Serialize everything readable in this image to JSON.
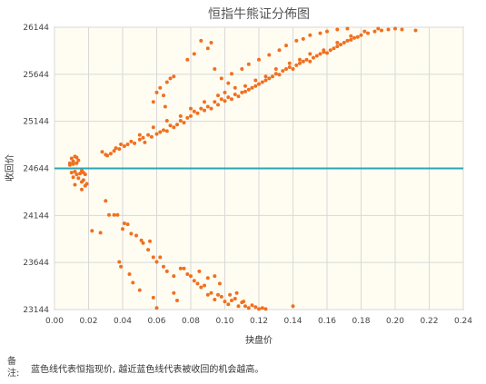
{
  "chart_data": {
    "type": "scatter",
    "title": "恒指牛熊证分佈图",
    "xlabel": "抉盘价",
    "ylabel": "收回价",
    "xlim": [
      0,
      0.24
    ],
    "ylim": [
      23144,
      26144
    ],
    "xticks": [
      "0.00",
      "0.02",
      "0.04",
      "0.06",
      "0.08",
      "0.10",
      "0.12",
      "0.14",
      "0.16",
      "0.18",
      "0.20",
      "0.22",
      "0.24"
    ],
    "yticks": [
      "23144",
      "23644",
      "24144",
      "24644",
      "25144",
      "25644",
      "26144"
    ],
    "reference_line": {
      "y": 24644,
      "color": "#2aa5b4"
    },
    "grid": true,
    "point_color": "#f07020",
    "background": "#fffdf2",
    "points": [
      [
        0.009,
        24700
      ],
      [
        0.01,
        24750
      ],
      [
        0.011,
        24720
      ],
      [
        0.012,
        24770
      ],
      [
        0.013,
        24760
      ],
      [
        0.009,
        24680
      ],
      [
        0.011,
        24690
      ],
      [
        0.013,
        24700
      ],
      [
        0.014,
        24730
      ],
      [
        0.01,
        24600
      ],
      [
        0.012,
        24610
      ],
      [
        0.013,
        24580
      ],
      [
        0.015,
        24590
      ],
      [
        0.016,
        24620
      ],
      [
        0.017,
        24600
      ],
      [
        0.018,
        24580
      ],
      [
        0.011,
        24550
      ],
      [
        0.014,
        24540
      ],
      [
        0.016,
        24500
      ],
      [
        0.017,
        24520
      ],
      [
        0.018,
        24460
      ],
      [
        0.012,
        24470
      ],
      [
        0.016,
        24420
      ],
      [
        0.019,
        24480
      ],
      [
        0.022,
        23980
      ],
      [
        0.027,
        23960
      ],
      [
        0.03,
        24300
      ],
      [
        0.032,
        24150
      ],
      [
        0.035,
        24150
      ],
      [
        0.037,
        24150
      ],
      [
        0.04,
        24000
      ],
      [
        0.041,
        24060
      ],
      [
        0.043,
        24050
      ],
      [
        0.045,
        23950
      ],
      [
        0.048,
        23930
      ],
      [
        0.051,
        23880
      ],
      [
        0.055,
        23780
      ],
      [
        0.058,
        23700
      ],
      [
        0.06,
        23650
      ],
      [
        0.064,
        23600
      ],
      [
        0.07,
        23500
      ],
      [
        0.052,
        23850
      ],
      [
        0.056,
        23870
      ],
      [
        0.062,
        23700
      ],
      [
        0.066,
        23550
      ],
      [
        0.074,
        23580
      ],
      [
        0.078,
        23520
      ],
      [
        0.038,
        23650
      ],
      [
        0.039,
        23600
      ],
      [
        0.044,
        23520
      ],
      [
        0.046,
        23430
      ],
      [
        0.05,
        23350
      ],
      [
        0.058,
        23270
      ],
      [
        0.06,
        23160
      ],
      [
        0.07,
        23320
      ],
      [
        0.072,
        23240
      ],
      [
        0.076,
        23580
      ],
      [
        0.08,
        23500
      ],
      [
        0.082,
        23450
      ],
      [
        0.084,
        23420
      ],
      [
        0.086,
        23380
      ],
      [
        0.088,
        23400
      ],
      [
        0.09,
        23300
      ],
      [
        0.092,
        23320
      ],
      [
        0.094,
        23250
      ],
      [
        0.096,
        23300
      ],
      [
        0.098,
        23280
      ],
      [
        0.1,
        23230
      ],
      [
        0.102,
        23200
      ],
      [
        0.104,
        23240
      ],
      [
        0.106,
        23260
      ],
      [
        0.108,
        23180
      ],
      [
        0.11,
        23220
      ],
      [
        0.112,
        23180
      ],
      [
        0.114,
        23160
      ],
      [
        0.116,
        23190
      ],
      [
        0.118,
        23170
      ],
      [
        0.12,
        23150
      ],
      [
        0.122,
        23160
      ],
      [
        0.124,
        23150
      ],
      [
        0.085,
        23550
      ],
      [
        0.09,
        23480
      ],
      [
        0.094,
        23500
      ],
      [
        0.097,
        23420
      ],
      [
        0.103,
        23300
      ],
      [
        0.107,
        23320
      ],
      [
        0.111,
        23230
      ],
      [
        0.14,
        23180
      ],
      [
        0.028,
        24820
      ],
      [
        0.03,
        24790
      ],
      [
        0.031,
        24780
      ],
      [
        0.033,
        24800
      ],
      [
        0.035,
        24830
      ],
      [
        0.036,
        24860
      ],
      [
        0.038,
        24850
      ],
      [
        0.039,
        24900
      ],
      [
        0.041,
        24880
      ],
      [
        0.043,
        24900
      ],
      [
        0.045,
        24930
      ],
      [
        0.047,
        24910
      ],
      [
        0.05,
        24950
      ],
      [
        0.052,
        24970
      ],
      [
        0.053,
        24920
      ],
      [
        0.055,
        25000
      ],
      [
        0.057,
        24980
      ],
      [
        0.06,
        25010
      ],
      [
        0.062,
        25030
      ],
      [
        0.064,
        25050
      ],
      [
        0.066,
        25040
      ],
      [
        0.068,
        25100
      ],
      [
        0.07,
        25080
      ],
      [
        0.072,
        25110
      ],
      [
        0.074,
        25150
      ],
      [
        0.076,
        25130
      ],
      [
        0.078,
        25180
      ],
      [
        0.08,
        25200
      ],
      [
        0.082,
        25250
      ],
      [
        0.084,
        25230
      ],
      [
        0.086,
        25280
      ],
      [
        0.088,
        25260
      ],
      [
        0.09,
        25300
      ],
      [
        0.092,
        25280
      ],
      [
        0.094,
        25350
      ],
      [
        0.096,
        25320
      ],
      [
        0.098,
        25380
      ],
      [
        0.1,
        25360
      ],
      [
        0.102,
        25400
      ],
      [
        0.104,
        25380
      ],
      [
        0.106,
        25430
      ],
      [
        0.108,
        25410
      ],
      [
        0.11,
        25450
      ],
      [
        0.112,
        25460
      ],
      [
        0.114,
        25480
      ],
      [
        0.116,
        25500
      ],
      [
        0.118,
        25520
      ],
      [
        0.12,
        25540
      ],
      [
        0.122,
        25560
      ],
      [
        0.124,
        25580
      ],
      [
        0.126,
        25600
      ],
      [
        0.128,
        25620
      ],
      [
        0.13,
        25650
      ],
      [
        0.132,
        25640
      ],
      [
        0.134,
        25680
      ],
      [
        0.136,
        25700
      ],
      [
        0.138,
        25720
      ],
      [
        0.14,
        25700
      ],
      [
        0.142,
        25740
      ],
      [
        0.144,
        25760
      ],
      [
        0.146,
        25780
      ],
      [
        0.148,
        25800
      ],
      [
        0.15,
        25780
      ],
      [
        0.152,
        25820
      ],
      [
        0.154,
        25840
      ],
      [
        0.156,
        25860
      ],
      [
        0.158,
        25880
      ],
      [
        0.16,
        25870
      ],
      [
        0.162,
        25900
      ],
      [
        0.164,
        25920
      ],
      [
        0.166,
        25940
      ],
      [
        0.168,
        25960
      ],
      [
        0.17,
        25980
      ],
      [
        0.172,
        26000
      ],
      [
        0.174,
        26010
      ],
      [
        0.176,
        26030
      ],
      [
        0.178,
        26040
      ],
      [
        0.18,
        26060
      ],
      [
        0.184,
        26080
      ],
      [
        0.188,
        26100
      ],
      [
        0.192,
        26110
      ],
      [
        0.196,
        26120
      ],
      [
        0.2,
        26130
      ],
      [
        0.204,
        26120
      ],
      [
        0.212,
        26110
      ],
      [
        0.05,
        25000
      ],
      [
        0.058,
        25080
      ],
      [
        0.066,
        25150
      ],
      [
        0.074,
        25200
      ],
      [
        0.08,
        25280
      ],
      [
        0.088,
        25350
      ],
      [
        0.096,
        25420
      ],
      [
        0.1,
        25450
      ],
      [
        0.106,
        25500
      ],
      [
        0.112,
        25520
      ],
      [
        0.118,
        25580
      ],
      [
        0.124,
        25620
      ],
      [
        0.13,
        25700
      ],
      [
        0.138,
        25760
      ],
      [
        0.144,
        25800
      ],
      [
        0.15,
        25860
      ],
      [
        0.158,
        25900
      ],
      [
        0.166,
        25980
      ],
      [
        0.174,
        26050
      ],
      [
        0.182,
        26100
      ],
      [
        0.19,
        26130
      ],
      [
        0.06,
        25450
      ],
      [
        0.062,
        25500
      ],
      [
        0.064,
        25420
      ],
      [
        0.066,
        25560
      ],
      [
        0.068,
        25600
      ],
      [
        0.07,
        25620
      ],
      [
        0.065,
        25300
      ],
      [
        0.058,
        25350
      ],
      [
        0.078,
        25800
      ],
      [
        0.082,
        25860
      ],
      [
        0.086,
        26000
      ],
      [
        0.09,
        25920
      ],
      [
        0.092,
        25980
      ],
      [
        0.094,
        25700
      ],
      [
        0.098,
        25600
      ],
      [
        0.102,
        25550
      ],
      [
        0.104,
        25650
      ],
      [
        0.11,
        25700
      ],
      [
        0.114,
        25750
      ],
      [
        0.12,
        25800
      ],
      [
        0.126,
        25850
      ],
      [
        0.132,
        25900
      ],
      [
        0.136,
        25950
      ],
      [
        0.142,
        26000
      ],
      [
        0.146,
        26020
      ],
      [
        0.15,
        26060
      ],
      [
        0.156,
        26080
      ],
      [
        0.16,
        26100
      ],
      [
        0.166,
        26120
      ],
      [
        0.172,
        26130
      ]
    ]
  },
  "note": {
    "label": "备注:",
    "text": "蓝色线代表恒指现价, 越近蓝色线代表被收回的机会越高。"
  }
}
